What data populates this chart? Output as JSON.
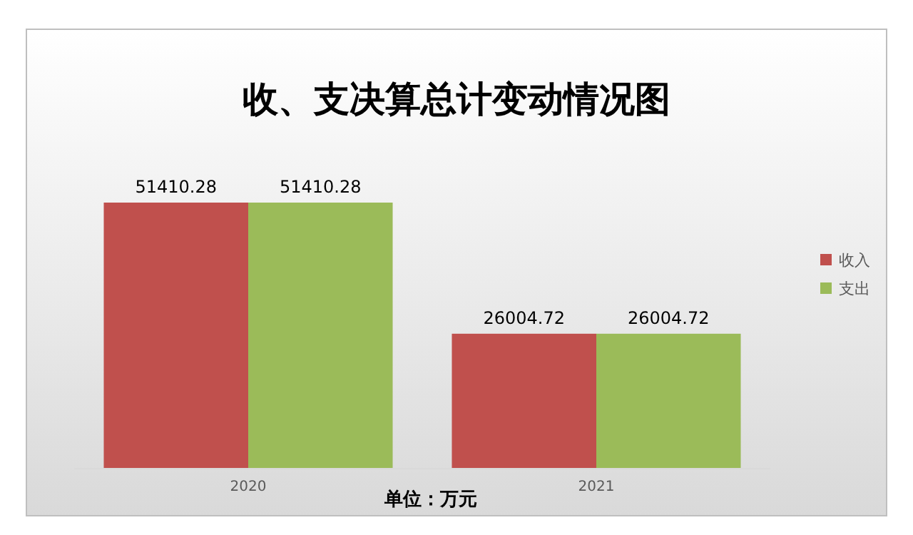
{
  "chart_data": {
    "type": "bar",
    "title": "收、支决算总计变动情况图",
    "categories": [
      "2020",
      "2021"
    ],
    "series": [
      {
        "name": "收入",
        "color": "#c0504d",
        "values": [
          51410.28,
          26004.72
        ]
      },
      {
        "name": "支出",
        "color": "#9bbb59",
        "values": [
          51410.28,
          26004.72
        ]
      }
    ],
    "data_labels": true,
    "legend": "right",
    "annotations": [
      "单位：万元"
    ]
  }
}
